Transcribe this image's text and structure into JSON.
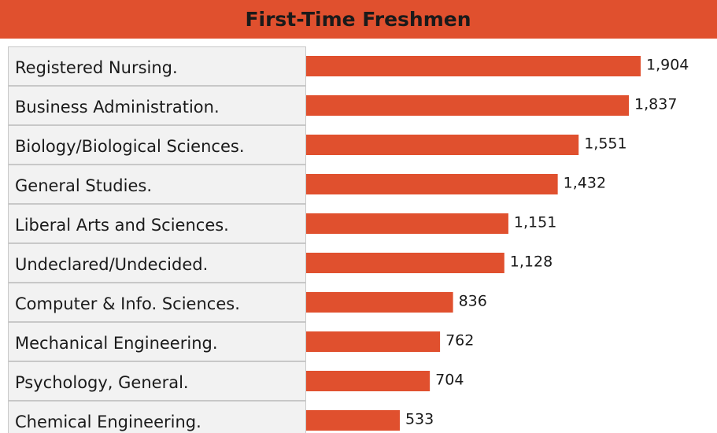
{
  "chart_data": {
    "type": "bar",
    "orientation": "horizontal",
    "title": "First-Time Freshmen",
    "categories": [
      "Registered Nursing.",
      "Business Administration.",
      "Biology/Biological Sciences.",
      "General Studies.",
      "Liberal Arts and Sciences.",
      "Undeclared/Undecided.",
      "Computer & Info. Sciences.",
      "Mechanical Engineering.",
      "Psychology, General.",
      "Chemical Engineering."
    ],
    "values": [
      1904,
      1837,
      1551,
      1432,
      1151,
      1128,
      836,
      762,
      704,
      533
    ],
    "value_labels": [
      "1,904",
      "1,837",
      "1,551",
      "1,432",
      "1,151",
      "1,128",
      "836",
      "762",
      "704",
      "533"
    ],
    "color": "#e0502e"
  }
}
